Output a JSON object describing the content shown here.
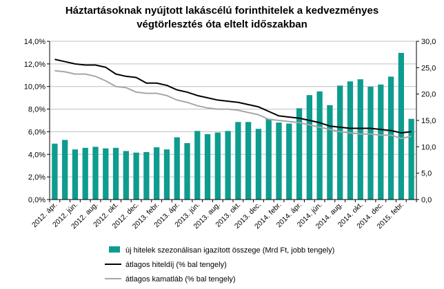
{
  "chart_data": {
    "type": "bar",
    "title_lines": [
      "Háztartásoknak nyújtott lakáscélú forinthitelek a kedvezményes",
      "végtörlesztés óta eltelt időszakban"
    ],
    "categories": [
      "2012. ápr.",
      "",
      "2012. jún.",
      "",
      "2012. aug.",
      "",
      "2012. okt.",
      "",
      "2012. dec.",
      "",
      "2013. febr.",
      "",
      "2013. ápr.",
      "",
      "2013. jún.",
      "",
      "2013. aug.",
      "",
      "2013. okt.",
      "",
      "2013. dec.",
      "",
      "2014. febr.",
      "",
      "2014. ápr.",
      "",
      "2014. jún.",
      "",
      "2014. aug.",
      "",
      "2014. okt.",
      "",
      "2014. dec.",
      "",
      "2015. febr.",
      ""
    ],
    "y_left": {
      "ylim": [
        0,
        14
      ],
      "ticks": [
        "0,0%",
        "2,0%",
        "4,0%",
        "6,0%",
        "8,0%",
        "10,0%",
        "12,0%",
        "14,0%"
      ]
    },
    "y_right": {
      "ylim": [
        0,
        30
      ],
      "ticks": [
        "0,0",
        "5,0",
        "10,0",
        "15,0",
        "20,0",
        "25,0",
        "30,0"
      ]
    },
    "grid": true,
    "legend_position": "bottom",
    "series": [
      {
        "name": "új hitelek szezonálisan igazított összege (Mrd Ft, jobb tengely)",
        "kind": "bar",
        "axis": "right",
        "color": "#0e9c8e",
        "values": [
          10.6,
          11.3,
          9.5,
          9.8,
          10.0,
          9.7,
          9.8,
          9.2,
          8.9,
          9.0,
          9.9,
          9.5,
          11.8,
          10.7,
          13.0,
          12.4,
          12.7,
          13.0,
          14.7,
          14.7,
          13.4,
          15.3,
          14.6,
          14.4,
          17.3,
          19.8,
          20.5,
          17.9,
          21.6,
          22.4,
          22.8,
          21.4,
          21.8,
          23.3,
          27.8,
          15.3
        ]
      },
      {
        "name": "átlagos hiteldíj (% bal tengely)",
        "kind": "line",
        "axis": "left",
        "color": "#000000",
        "values": [
          12.4,
          12.2,
          12.0,
          11.9,
          11.9,
          11.7,
          11.1,
          10.9,
          10.8,
          10.3,
          10.3,
          10.1,
          9.7,
          9.5,
          9.2,
          9.0,
          8.8,
          8.7,
          8.6,
          8.4,
          8.2,
          7.8,
          7.4,
          7.3,
          7.2,
          7.0,
          6.8,
          6.5,
          6.4,
          6.3,
          6.3,
          6.3,
          6.2,
          6.1,
          5.9,
          6.0
        ]
      },
      {
        "name": "átlagos kamatláb (% bal tengely)",
        "kind": "line",
        "axis": "left",
        "color": "#a6a6a6",
        "values": [
          11.4,
          11.3,
          11.1,
          11.1,
          10.9,
          10.5,
          10.0,
          9.9,
          9.5,
          9.4,
          9.4,
          9.2,
          8.8,
          8.6,
          8.3,
          8.1,
          8.0,
          8.0,
          7.9,
          7.7,
          7.5,
          7.1,
          7.0,
          6.9,
          6.8,
          6.6,
          6.4,
          6.2,
          6.0,
          5.9,
          5.8,
          5.8,
          5.7,
          5.7,
          5.4,
          5.6
        ]
      }
    ]
  }
}
